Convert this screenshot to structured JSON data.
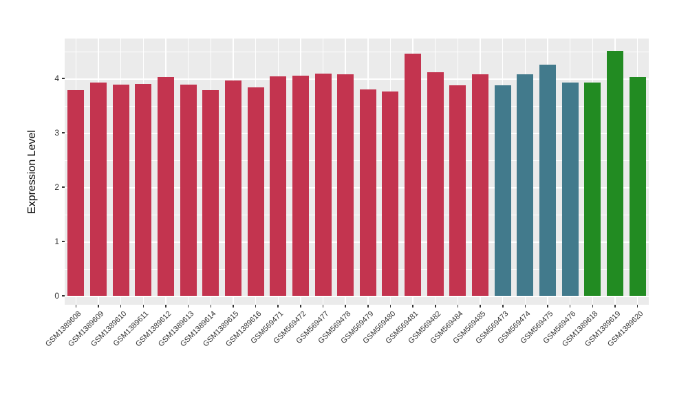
{
  "chart": {
    "ylabel": "Expression Level"
  },
  "chart_data": {
    "type": "bar",
    "title": "",
    "xlabel": "",
    "ylabel": "Expression Level",
    "legend": "none",
    "grid": true,
    "panel_bg": "#EBEBEB",
    "grid_color": "#FFFFFF",
    "axis_text_color": "#333333",
    "ylim": [
      0,
      4.73
    ],
    "y_ticks": [
      0,
      1,
      2,
      3,
      4
    ],
    "y_minor_ticks": [
      0.5,
      1.5,
      2.5,
      3.5,
      4.5
    ],
    "categories": [
      "GSM1389608",
      "GSM1389609",
      "GSM1389610",
      "GSM1389611",
      "GSM1389612",
      "GSM1389613",
      "GSM1389614",
      "GSM1389615",
      "GSM1389616",
      "GSM569471",
      "GSM569472",
      "GSM569477",
      "GSM569478",
      "GSM569479",
      "GSM569480",
      "GSM569481",
      "GSM569482",
      "GSM569484",
      "GSM569485",
      "GSM569473",
      "GSM569474",
      "GSM569475",
      "GSM569476",
      "GSM1389618",
      "GSM1389619",
      "GSM1389620"
    ],
    "values": [
      3.78,
      3.92,
      3.88,
      3.9,
      4.02,
      3.89,
      3.78,
      3.96,
      3.83,
      4.04,
      4.05,
      4.09,
      4.07,
      3.8,
      3.76,
      4.45,
      4.11,
      3.87,
      4.08,
      3.87,
      4.08,
      4.25,
      3.92,
      3.92,
      4.51,
      4.02
    ],
    "groups": [
      "red",
      "red",
      "red",
      "red",
      "red",
      "red",
      "red",
      "red",
      "red",
      "red",
      "red",
      "red",
      "red",
      "red",
      "red",
      "red",
      "red",
      "red",
      "red",
      "teal",
      "teal",
      "teal",
      "teal",
      "green",
      "green",
      "green"
    ],
    "group_colors": {
      "red": "#C3344F",
      "teal": "#427A8C",
      "green": "#228B22"
    }
  }
}
